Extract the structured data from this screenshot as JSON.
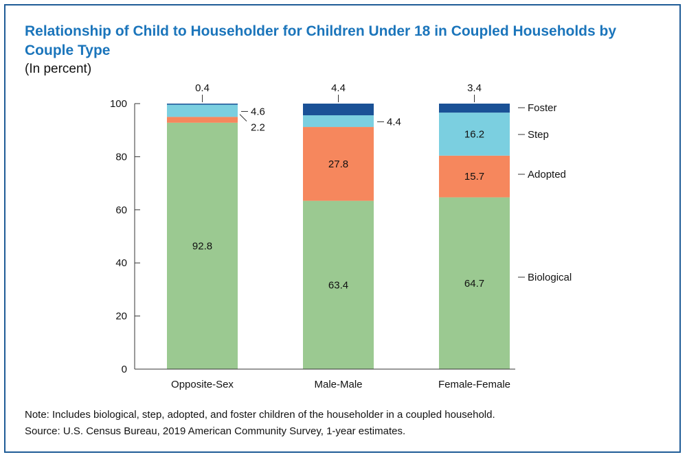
{
  "chart_data": {
    "type": "bar",
    "stacked": true,
    "title": "Relationship of Child to Householder for Children Under 18 in Coupled Households by Couple Type",
    "subtitle": "(In percent)",
    "categories": [
      "Opposite-Sex",
      "Male-Male",
      "Female-Female"
    ],
    "series": [
      {
        "name": "Biological",
        "values": [
          92.8,
          63.4,
          64.7
        ],
        "color": "#9bc991"
      },
      {
        "name": "Adopted",
        "values": [
          2.2,
          27.8,
          15.7
        ],
        "color": "#f6875d"
      },
      {
        "name": "Step",
        "values": [
          4.6,
          4.4,
          16.2
        ],
        "color": "#7bcfe0"
      },
      {
        "name": "Foster",
        "values": [
          0.4,
          4.4,
          3.4
        ],
        "color": "#1a5196"
      }
    ],
    "yticks": [
      "0",
      "20",
      "40",
      "60",
      "80",
      "100"
    ],
    "ylim": [
      0,
      100
    ],
    "legend_position": "right"
  },
  "notes": {
    "note": "Note: Includes biological, step, adopted, and foster children of the householder in a coupled household.",
    "source": "Source: U.S. Census Bureau, 2019 American Community Survey, 1-year estimates."
  },
  "colors": {
    "title": "#1b75bb",
    "border": "#1e5b96"
  }
}
